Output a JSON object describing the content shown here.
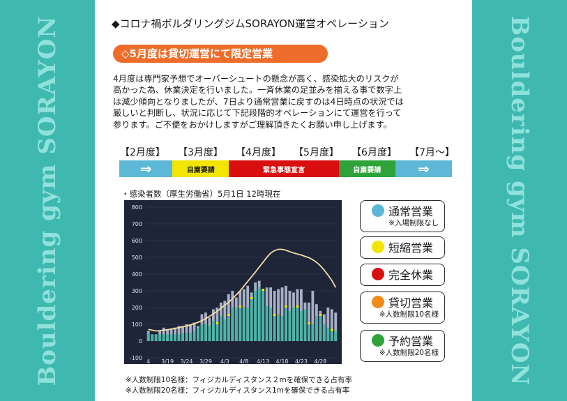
{
  "side_text": "Bouldering gym SORAYON",
  "title": "◆コロナ禍ボルダリングジムSORAYON運営オペレーション",
  "subtitle": "◇5月度は貸切運営にて限定営業",
  "paragraph": [
    "4月度は専門家予想でオーバーシュートの懸念が高く、感染拡大のリスクが",
    "高かった為、休業決定を行いました。一斉休業の足並みを揃える事で数字上",
    "は減少傾向となりましたが、7日より通常営業に戻すのは4日時点の状況では",
    "厳しいと判断し、状況に応じて下記段階的オペレーションにて運営を行って",
    "参ります。ご不便をおかけしますがご理解頂きたくお願い申し上げます。"
  ],
  "months": [
    "【2月度】",
    "【3月度】",
    "【4月度】",
    "【5月度】",
    "【6月度】",
    "【7月～】"
  ],
  "timeline": [
    {
      "label": "⇒",
      "color": "#5cb8d6",
      "text_color": "#ffffff",
      "share": 16
    },
    {
      "label": "自粛要請",
      "color": "#f2e600",
      "text_color": "#222222",
      "share": 17
    },
    {
      "label": "緊急事態宣言",
      "color": "#d90f0f",
      "text_color": "#ffffff",
      "share": 33
    },
    {
      "label": "自粛要請",
      "color": "#2da33a",
      "text_color": "#ffffff",
      "share": 17
    },
    {
      "label": "⇒",
      "color": "#5cb8d6",
      "text_color": "#ffffff",
      "share": 17
    }
  ],
  "chart_caption": "・感染者数（厚生労働省）5月1日 12時現在",
  "chart_data": {
    "type": "bar",
    "title": "",
    "xlabel": "",
    "ylabel": "",
    "ylim": [
      -100,
      800
    ],
    "yticks": [
      -100,
      0,
      100,
      200,
      300,
      400,
      500,
      600,
      700,
      800
    ],
    "x_tick_labels": [
      "4",
      "3/19",
      "3/24",
      "3/29",
      "4/3",
      "4/8",
      "4/13",
      "4/18",
      "4/23",
      "4/28"
    ],
    "x_tick_index": [
      0,
      5,
      10,
      15,
      20,
      25,
      30,
      35,
      40,
      45
    ],
    "series": [
      {
        "values": [
          60,
          30,
          -20,
          60,
          80,
          70,
          70,
          80,
          90,
          90,
          100,
          100,
          110,
          90,
          160,
          170,
          140,
          190,
          200,
          230,
          240,
          280,
          300,
          260,
          300,
          310,
          330,
          290,
          350,
          360,
          280,
          320,
          320,
          300,
          310,
          320,
          330,
          300,
          290,
          310,
          310,
          230,
          230,
          300,
          220,
          180,
          160,
          200,
          190,
          170
        ]
      },
      {
        "values": [
          50,
          40,
          40,
          40,
          40,
          40,
          40,
          40,
          40,
          50,
          50,
          50,
          60,
          80,
          100,
          100,
          90,
          120,
          100,
          150,
          130,
          150,
          200,
          200,
          200,
          200,
          200,
          250,
          300,
          320,
          300,
          210,
          200,
          150,
          160,
          150,
          200,
          180,
          200,
          200,
          180,
          190,
          100,
          100,
          150,
          150,
          100,
          80,
          60,
          60
        ]
      }
    ],
    "line": [
      70,
      65,
      60,
      62,
      65,
      68,
      72,
      76,
      80,
      85,
      90,
      96,
      104,
      112,
      122,
      134,
      148,
      162,
      178,
      196,
      214,
      232,
      252,
      276,
      300,
      328,
      356,
      384,
      412,
      442,
      470,
      500,
      526,
      540,
      548,
      548,
      542,
      534,
      526,
      520,
      514,
      506,
      498,
      486,
      470,
      450,
      424,
      394,
      362,
      320
    ]
  },
  "colors": {
    "bar_base": "#4bb5a8",
    "bar_top": "#a7b0c4",
    "bar_yellow": "#f2e600",
    "line": "#f6dca4",
    "chart_bg": "#1e2538",
    "grid": "#3a4156",
    "axis_text": "#dde2ec"
  },
  "legend": [
    {
      "name": "通常営業",
      "color": "#5cb8d6",
      "note": "※入場制限なし"
    },
    {
      "name": "短縮営業",
      "color": "#f2e600",
      "note": ""
    },
    {
      "name": "完全休業",
      "color": "#d90f0f",
      "note": ""
    },
    {
      "name": "貸切営業",
      "color": "#f28b18",
      "note": "※人数制限10名様"
    },
    {
      "name": "予約営業",
      "color": "#2da33a",
      "note": "※人数制限20名様"
    }
  ],
  "footnotes": [
    "※人数制限10名様：フィジカルディスタンス２mを確保できる占有率",
    "※人数制限20名様：フィジカルディスタンス1mを確保できる占有率"
  ]
}
